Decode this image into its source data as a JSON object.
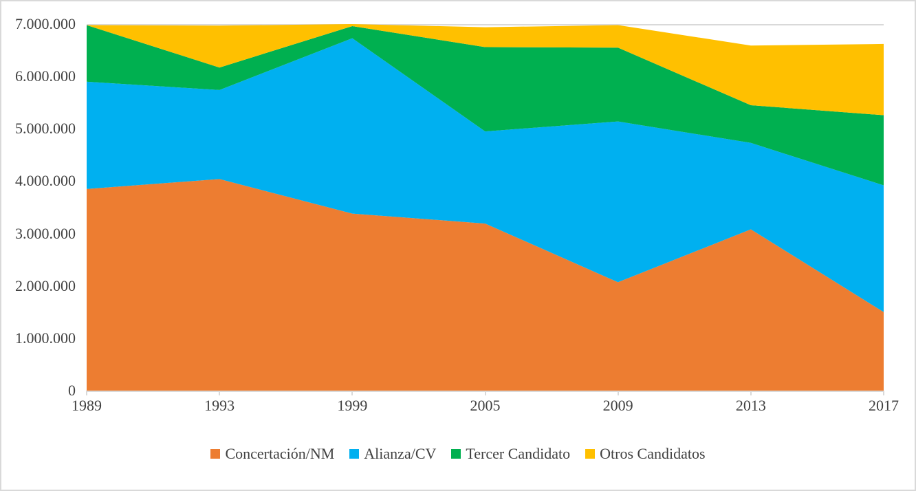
{
  "chart_data": {
    "type": "area",
    "stacked": true,
    "title": "",
    "xlabel": "",
    "ylabel": "",
    "categories": [
      "1989",
      "1993",
      "1999",
      "2005",
      "2009",
      "2013",
      "2017"
    ],
    "series": [
      {
        "name": "Concertación/NM",
        "color": "#ED7D31",
        "values": [
          3850000,
          4040000,
          3380000,
          3190000,
          2070000,
          3080000,
          1500000
        ]
      },
      {
        "name": "Alianza/CV",
        "color": "#00B0F0",
        "values": [
          2050000,
          1700000,
          3350000,
          1760000,
          3070000,
          1650000,
          2420000
        ]
      },
      {
        "name": "Tercer Candidato",
        "color": "#00B050",
        "values": [
          1080000,
          430000,
          230000,
          1610000,
          1410000,
          720000,
          1340000
        ]
      },
      {
        "name": "Otros Candidatos",
        "color": "#FFC000",
        "values": [
          0,
          800000,
          110000,
          380000,
          430000,
          1140000,
          1360000
        ]
      }
    ],
    "ylim": [
      0,
      7000000
    ],
    "y_tick_values": [
      0,
      1000000,
      2000000,
      3000000,
      4000000,
      5000000,
      6000000,
      7000000
    ],
    "y_tick_labels": [
      "0",
      "1.000.000",
      "2.000.000",
      "3.000.000",
      "4.000.000",
      "5.000.000",
      "6.000.000",
      "7.000.000"
    ],
    "grid": "horizontal-top-only",
    "legend_position": "bottom"
  },
  "colors": {
    "axis_text": "#404040",
    "axis_line": "#D9D9D9",
    "gridline": "#D9D9D9",
    "frame_border": "#D9D9D9",
    "background": "#FFFFFF"
  }
}
